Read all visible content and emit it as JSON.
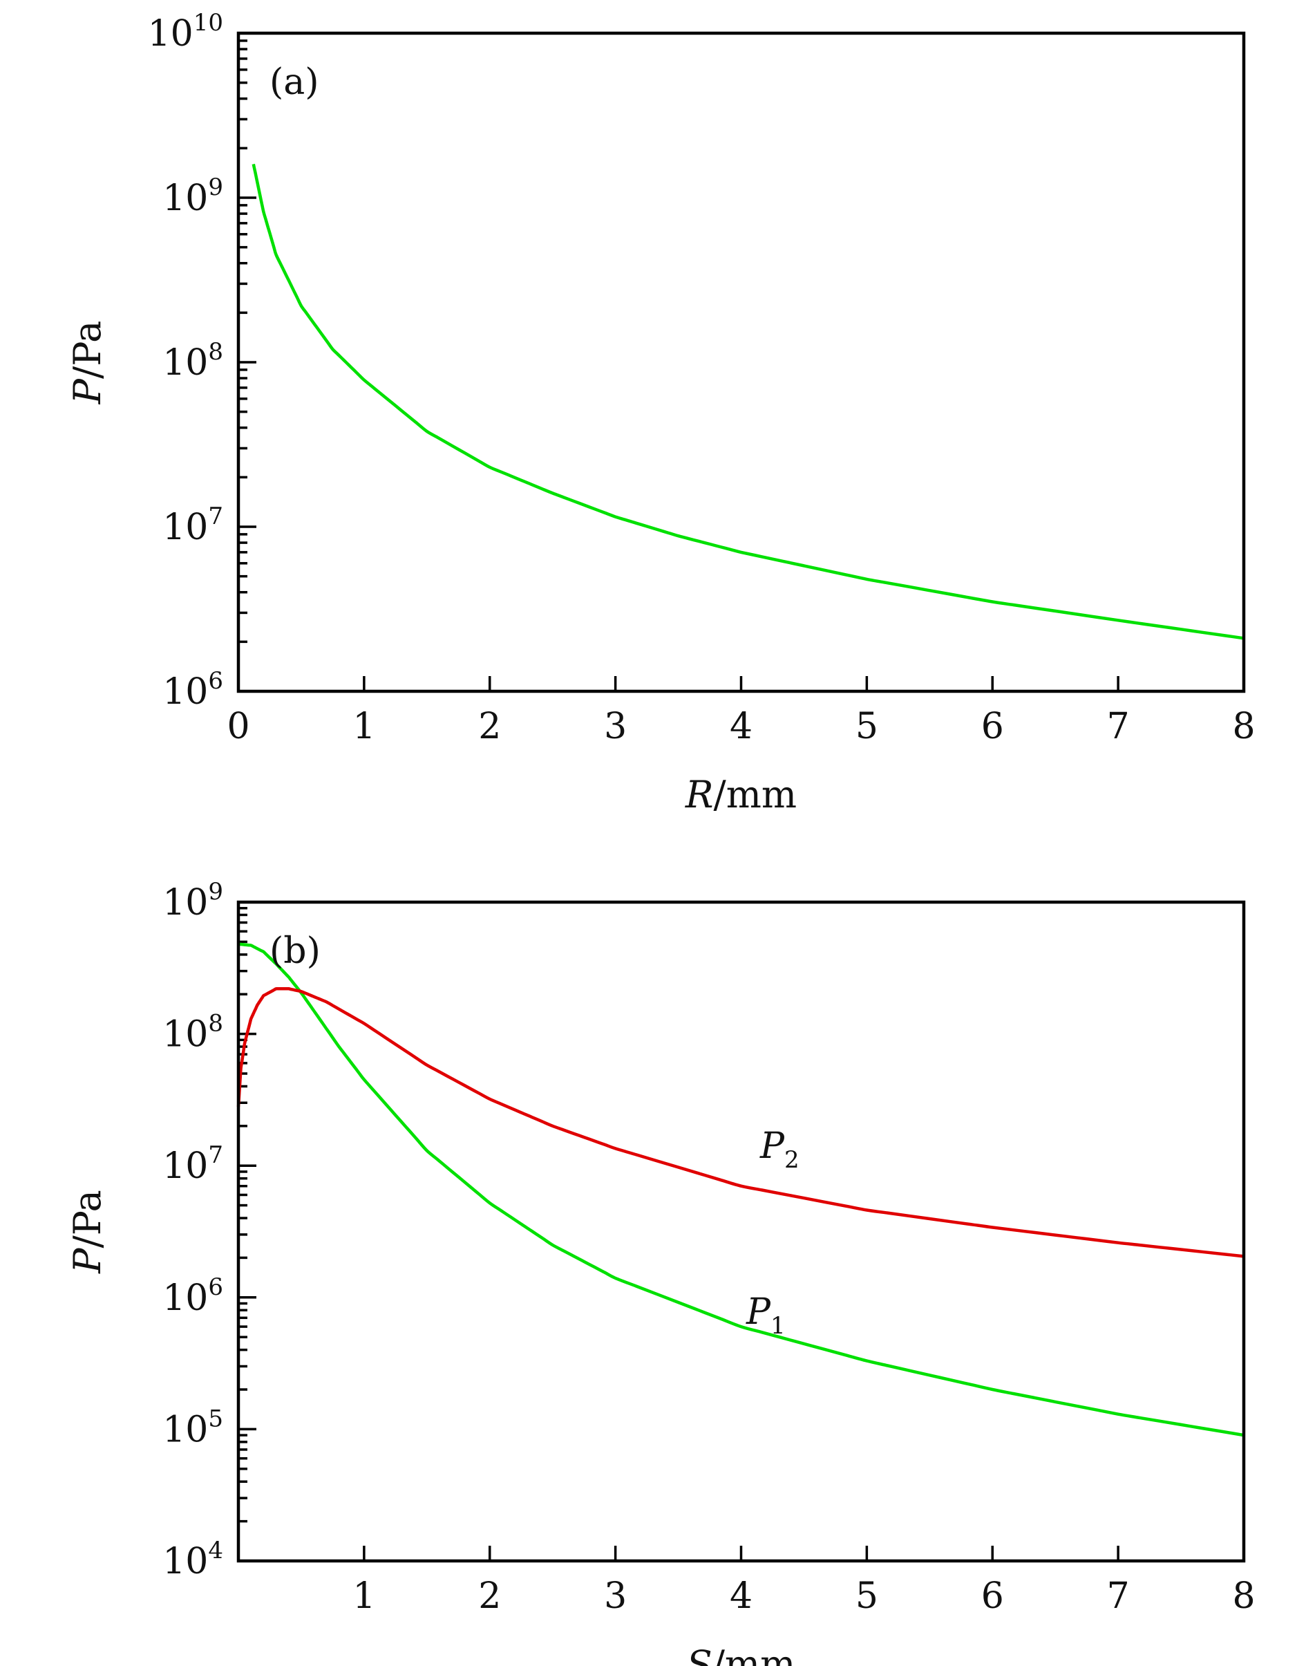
{
  "chart_data": [
    {
      "type": "line",
      "panel": "(a)",
      "xlabel": "R/mm",
      "ylabel": "P/Pa",
      "xlim": [
        0,
        8
      ],
      "ylim": [
        1000000,
        10000000000
      ],
      "yscale": "log",
      "xticks": [
        0,
        1,
        2,
        3,
        4,
        5,
        6,
        7,
        8
      ],
      "ytick_bases": [
        "10",
        "10",
        "10",
        "10",
        "10"
      ],
      "ytick_exponents": [
        "6",
        "7",
        "8",
        "9",
        "10"
      ],
      "colors": {
        "series": "#00e000"
      },
      "series": [
        {
          "x": [
            0.12,
            0.2,
            0.3,
            0.5,
            0.75,
            1,
            1.5,
            2,
            2.5,
            3,
            3.5,
            4,
            5,
            6,
            7,
            8
          ],
          "y": [
            1600000000,
            820000000,
            450000000,
            220000000,
            120000000,
            78000000,
            38000000,
            23000000,
            16000000,
            11500000,
            8800000,
            7000000,
            4800000,
            3500000,
            2700000,
            2100000
          ]
        }
      ]
    },
    {
      "type": "line",
      "panel": "(b)",
      "xlabel": "S/mm",
      "ylabel": "P/Pa",
      "xlim": [
        0.0,
        8
      ],
      "ylim": [
        10000,
        1000000000
      ],
      "yscale": "log",
      "xticks": [
        1,
        2,
        3,
        4,
        5,
        6,
        7,
        8
      ],
      "ytick_bases": [
        "10",
        "10",
        "10",
        "10",
        "10",
        "10"
      ],
      "ytick_exponents": [
        "4",
        "5",
        "6",
        "7",
        "8",
        "9"
      ],
      "colors": {
        "P1": "#00e000",
        "P2": "#e00000"
      },
      "series": [
        {
          "name": "P1",
          "label_base": "P",
          "label_sub": "1",
          "x": [
            0.0,
            0.1,
            0.2,
            0.3,
            0.4,
            0.5,
            0.6,
            0.8,
            1,
            1.5,
            2,
            2.5,
            3,
            4,
            5,
            6,
            7,
            8
          ],
          "y": [
            480000000,
            470000000,
            420000000,
            340000000,
            270000000,
            205000000,
            150000000,
            80000000,
            45000000,
            13000000,
            5200000,
            2500000,
            1400000,
            600000,
            330000,
            200000,
            130000,
            90000
          ]
        },
        {
          "name": "P2",
          "label_base": "P",
          "label_sub": "2",
          "x": [
            0.0,
            0.02,
            0.05,
            0.1,
            0.15,
            0.2,
            0.3,
            0.4,
            0.5,
            0.7,
            1,
            1.5,
            2,
            2.5,
            3,
            4,
            5,
            6,
            7,
            8
          ],
          "y": [
            28000000,
            55000000,
            85000000,
            130000000,
            165000000,
            195000000,
            220000000,
            220000000,
            210000000,
            175000000,
            120000000,
            58000000,
            32000000,
            20000000,
            13500000,
            7000000,
            4600000,
            3400000,
            2600000,
            2050000
          ]
        }
      ]
    }
  ]
}
